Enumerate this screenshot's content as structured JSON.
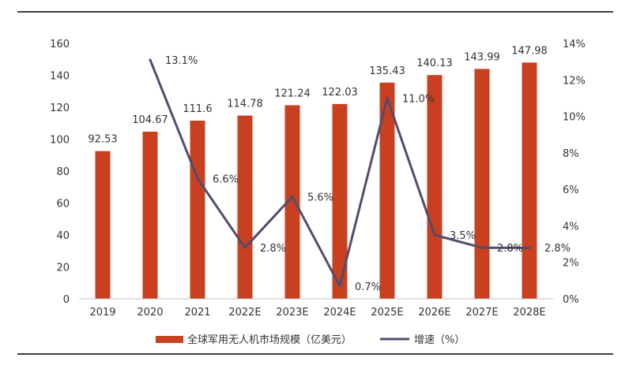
{
  "chart_data": {
    "type": "bar",
    "categories": [
      "2019",
      "2020",
      "2021",
      "2022E",
      "2023E",
      "2024E",
      "2025E",
      "2026E",
      "2027E",
      "2028E"
    ],
    "series": [
      {
        "name": "全球军用无人机市场规模（亿美元）",
        "type": "bar",
        "axis": "left",
        "color": "#c8401f",
        "values": [
          92.53,
          104.67,
          111.6,
          114.78,
          121.24,
          122.03,
          135.43,
          140.13,
          143.99,
          147.98
        ],
        "labels": [
          "92.53",
          "104.67",
          "111.6",
          "114.78",
          "121.24",
          "122.03",
          "135.43",
          "140.13",
          "143.99",
          "147.98"
        ]
      },
      {
        "name": "增速（%）",
        "type": "line",
        "axis": "right",
        "color": "#534c6e",
        "values": [
          null,
          13.1,
          6.6,
          2.8,
          5.6,
          0.7,
          11.0,
          3.5,
          2.8,
          2.8
        ],
        "labels": [
          "",
          "13.1%",
          "6.6%",
          "2.8%",
          "5.6%",
          "0.7%",
          "11.0%",
          "3.5%",
          "2.8%",
          "2.8%"
        ]
      }
    ],
    "left_axis": {
      "ylim": [
        0,
        160
      ],
      "ticks": [
        0,
        20,
        40,
        60,
        80,
        100,
        120,
        140,
        160
      ],
      "tick_labels": [
        "0",
        "20",
        "40",
        "60",
        "80",
        "100",
        "120",
        "140",
        "160"
      ]
    },
    "right_axis": {
      "ylim": [
        0,
        14
      ],
      "ticks": [
        0,
        2,
        4,
        6,
        8,
        10,
        12,
        14
      ],
      "tick_labels": [
        "0%",
        "2%",
        "4%",
        "6%",
        "8%",
        "10%",
        "12%",
        "14%"
      ]
    },
    "grid": false,
    "legend": "bottom-center",
    "title": "",
    "xlabel": "",
    "ylabel": ""
  }
}
